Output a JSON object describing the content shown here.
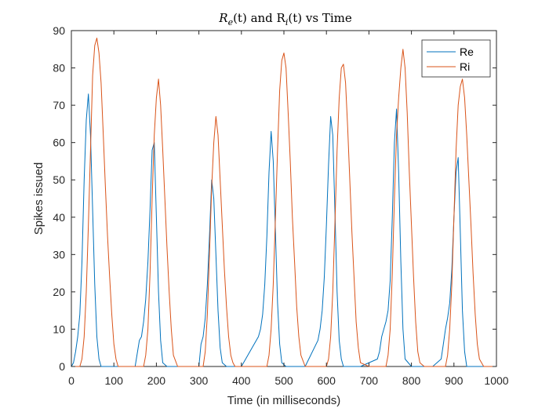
{
  "chart_data": {
    "type": "line",
    "title": "R_e(t) and R_i(t) vs Time",
    "title_parts": [
      "R",
      "e",
      "(t) and R",
      "i",
      "(t) vs Time"
    ],
    "xlabel": "Time (in milliseconds)",
    "ylabel": "Spikes issued",
    "xlim": [
      0,
      1000
    ],
    "ylim": [
      0,
      90
    ],
    "xticks": [
      0,
      100,
      200,
      300,
      400,
      500,
      600,
      700,
      800,
      900,
      1000
    ],
    "yticks": [
      0,
      10,
      20,
      30,
      40,
      50,
      60,
      70,
      80,
      90
    ],
    "grid": false,
    "legend_position": "top-right",
    "series": [
      {
        "name": "Re",
        "color": "#0072BD",
        "x": [
          0,
          5,
          10,
          15,
          20,
          25,
          30,
          35,
          40,
          45,
          50,
          55,
          60,
          65,
          70,
          80,
          100,
          150,
          160,
          165,
          170,
          175,
          180,
          185,
          190,
          195,
          200,
          205,
          210,
          215,
          225,
          250,
          300,
          305,
          310,
          315,
          320,
          325,
          330,
          335,
          340,
          345,
          350,
          355,
          365,
          400,
          440,
          445,
          450,
          455,
          460,
          465,
          470,
          475,
          480,
          485,
          490,
          495,
          505,
          550,
          580,
          585,
          590,
          595,
          600,
          605,
          610,
          615,
          620,
          625,
          630,
          635,
          640,
          645,
          655,
          680,
          720,
          725,
          730,
          735,
          740,
          745,
          750,
          755,
          760,
          765,
          770,
          775,
          780,
          785,
          800,
          850,
          870,
          875,
          880,
          885,
          890,
          895,
          900,
          905,
          910,
          915,
          920,
          925,
          930,
          950,
          1000
        ],
        "y": [
          0,
          1,
          4,
          8,
          14,
          28,
          50,
          66,
          73,
          62,
          42,
          22,
          8,
          2,
          0,
          0,
          0,
          0,
          7,
          8,
          12,
          18,
          28,
          42,
          58,
          60,
          40,
          20,
          7,
          1,
          0,
          0,
          0,
          6,
          8,
          13,
          22,
          35,
          50,
          45,
          30,
          15,
          5,
          1,
          0,
          0,
          8,
          10,
          14,
          22,
          35,
          52,
          63,
          55,
          36,
          17,
          6,
          1,
          0,
          0,
          7,
          10,
          15,
          24,
          38,
          54,
          67,
          62,
          42,
          20,
          7,
          2,
          0,
          0,
          0,
          0,
          2,
          4,
          8,
          10,
          12,
          15,
          23,
          40,
          60,
          69,
          52,
          28,
          10,
          2,
          0,
          0,
          2,
          6,
          10,
          13,
          17,
          26,
          40,
          52,
          56,
          36,
          15,
          4,
          0,
          0,
          0
        ]
      },
      {
        "name": "Ri",
        "color": "#D95319",
        "x": [
          0,
          20,
          25,
          30,
          35,
          40,
          45,
          50,
          55,
          60,
          65,
          70,
          75,
          80,
          85,
          90,
          95,
          100,
          105,
          110,
          150,
          170,
          175,
          180,
          185,
          190,
          195,
          200,
          205,
          210,
          215,
          220,
          225,
          230,
          235,
          240,
          250,
          300,
          310,
          315,
          320,
          325,
          330,
          335,
          340,
          345,
          350,
          355,
          360,
          365,
          370,
          375,
          380,
          385,
          400,
          450,
          460,
          465,
          470,
          475,
          480,
          485,
          490,
          495,
          500,
          505,
          510,
          515,
          520,
          525,
          530,
          535,
          540,
          550,
          600,
          605,
          610,
          615,
          620,
          625,
          630,
          635,
          640,
          645,
          650,
          655,
          660,
          665,
          670,
          675,
          680,
          700,
          740,
          745,
          750,
          755,
          760,
          765,
          770,
          775,
          780,
          785,
          790,
          795,
          800,
          805,
          810,
          815,
          820,
          830,
          880,
          885,
          890,
          895,
          900,
          905,
          910,
          915,
          920,
          925,
          930,
          935,
          940,
          945,
          950,
          955,
          960,
          970,
          1000
        ],
        "y": [
          0,
          0,
          2,
          8,
          20,
          38,
          58,
          78,
          86,
          88,
          84,
          76,
          62,
          48,
          35,
          24,
          14,
          6,
          2,
          0,
          0,
          0,
          3,
          10,
          25,
          45,
          62,
          72,
          77,
          70,
          58,
          45,
          32,
          20,
          10,
          3,
          0,
          0,
          0,
          4,
          14,
          30,
          48,
          60,
          67,
          62,
          50,
          38,
          26,
          16,
          8,
          3,
          1,
          0,
          0,
          0,
          0,
          3,
          10,
          22,
          40,
          58,
          74,
          82,
          84,
          80,
          68,
          55,
          40,
          28,
          16,
          8,
          3,
          0,
          0,
          2,
          8,
          20,
          38,
          58,
          72,
          80,
          81,
          76,
          64,
          50,
          36,
          24,
          12,
          5,
          1,
          0,
          0,
          3,
          10,
          25,
          45,
          62,
          72,
          80,
          85,
          80,
          68,
          52,
          38,
          24,
          12,
          4,
          1,
          0,
          0,
          3,
          10,
          22,
          40,
          58,
          70,
          75,
          77,
          72,
          62,
          50,
          38,
          25,
          14,
          6,
          2,
          0,
          0
        ]
      }
    ]
  }
}
